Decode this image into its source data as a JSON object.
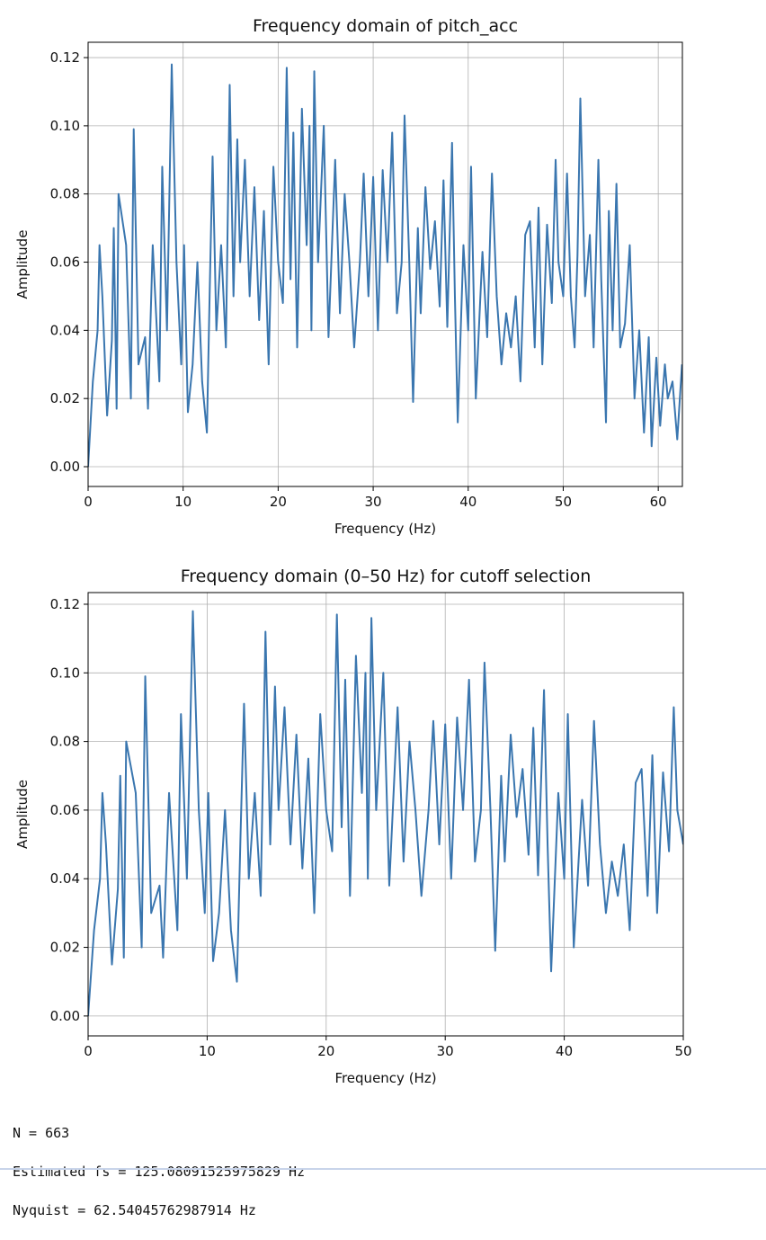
{
  "chart_data": [
    {
      "type": "line",
      "title": "Frequency domain of pitch_acc",
      "xlabel": "Frequency (Hz)",
      "ylabel": "Amplitude",
      "grid": true,
      "xlim": [
        0,
        62.54
      ],
      "ylim": [
        -0.0058,
        0.1245
      ],
      "xticks": [
        0,
        10,
        20,
        30,
        40,
        50,
        60
      ],
      "yticks": [
        {
          "value": 0,
          "label": "0.00"
        },
        {
          "value": 0.02,
          "label": "0.02"
        },
        {
          "value": 0.04,
          "label": "0.04"
        },
        {
          "value": 0.06,
          "label": "0.06"
        },
        {
          "value": 0.08,
          "label": "0.08"
        },
        {
          "value": 0.1,
          "label": "0.10"
        },
        {
          "value": 0.12,
          "label": "0.12"
        }
      ],
      "series": [
        {
          "color": "#3a76af",
          "x": [
            0,
            0.5,
            1,
            1.2,
            1.5,
            2,
            2.5,
            2.7,
            3,
            3.2,
            4,
            4.5,
            4.8,
            5.3,
            6,
            6.3,
            6.8,
            7.5,
            7.8,
            8.3,
            8.8,
            9.3,
            9.8,
            10.1,
            10.5,
            11,
            11.5,
            12,
            12.5,
            12.8,
            13.1,
            13.5,
            14,
            14.5,
            14.9,
            15.3,
            15.7,
            16,
            16.5,
            17,
            17.5,
            18,
            18.5,
            19,
            19.5,
            20,
            20.5,
            20.9,
            21.3,
            21.6,
            22,
            22.5,
            23,
            23.3,
            23.5,
            23.8,
            24.2,
            24.8,
            25.3,
            26,
            26.5,
            27,
            27.5,
            28,
            28.6,
            29,
            29.5,
            30,
            30.5,
            31,
            31.5,
            32,
            32.5,
            33,
            33.3,
            33.8,
            34.2,
            34.7,
            35,
            35.5,
            36,
            36.5,
            37,
            37.4,
            37.8,
            38.3,
            38.6,
            38.9,
            39.5,
            40,
            40.3,
            40.8,
            41.2,
            41.5,
            42,
            42.5,
            43,
            43.5,
            44,
            44.5,
            45,
            45.5,
            46,
            46.5,
            47,
            47.4,
            47.8,
            48.3,
            48.8,
            49.2,
            49.5,
            50,
            50.4,
            50.8,
            51.2,
            51.5,
            51.8,
            52.3,
            52.8,
            53.2,
            53.7,
            54,
            54.5,
            54.8,
            55.2,
            55.6,
            56,
            56.5,
            57,
            57.5,
            58,
            58.5,
            59,
            59.3,
            59.8,
            60.2,
            60.7,
            61,
            61.5,
            62,
            62.5
          ],
          "values": [
            0,
            0.025,
            0.04,
            0.065,
            0.05,
            0.015,
            0.037,
            0.07,
            0.017,
            0.08,
            0.065,
            0.02,
            0.099,
            0.03,
            0.038,
            0.017,
            0.065,
            0.025,
            0.088,
            0.04,
            0.118,
            0.06,
            0.03,
            0.065,
            0.016,
            0.03,
            0.06,
            0.025,
            0.01,
            0.052,
            0.091,
            0.04,
            0.065,
            0.035,
            0.112,
            0.05,
            0.096,
            0.06,
            0.09,
            0.05,
            0.082,
            0.043,
            0.075,
            0.03,
            0.088,
            0.06,
            0.048,
            0.117,
            0.055,
            0.098,
            0.035,
            0.105,
            0.065,
            0.1,
            0.04,
            0.116,
            0.06,
            0.1,
            0.038,
            0.09,
            0.045,
            0.08,
            0.06,
            0.035,
            0.06,
            0.086,
            0.05,
            0.085,
            0.04,
            0.087,
            0.06,
            0.098,
            0.045,
            0.06,
            0.103,
            0.06,
            0.019,
            0.07,
            0.045,
            0.082,
            0.058,
            0.072,
            0.047,
            0.084,
            0.041,
            0.095,
            0.05,
            0.013,
            0.065,
            0.04,
            0.088,
            0.02,
            0.045,
            0.063,
            0.038,
            0.086,
            0.05,
            0.03,
            0.045,
            0.035,
            0.05,
            0.025,
            0.068,
            0.072,
            0.035,
            0.076,
            0.03,
            0.071,
            0.048,
            0.09,
            0.06,
            0.05,
            0.086,
            0.05,
            0.035,
            0.062,
            0.108,
            0.05,
            0.068,
            0.035,
            0.09,
            0.055,
            0.013,
            0.075,
            0.04,
            0.083,
            0.035,
            0.042,
            0.065,
            0.02,
            0.04,
            0.01,
            0.038,
            0.006,
            0.032,
            0.012,
            0.03,
            0.02,
            0.025,
            0.008,
            0.03
          ]
        }
      ]
    },
    {
      "type": "line",
      "title": "Frequency domain (0–50 Hz) for cutoff selection",
      "xlabel": "Frequency (Hz)",
      "ylabel": "Amplitude",
      "grid": true,
      "xlim": [
        0,
        50
      ],
      "ylim": [
        -0.0058,
        0.1234
      ],
      "xticks": [
        0,
        10,
        20,
        30,
        40,
        50
      ],
      "yticks": [
        {
          "value": 0,
          "label": "0.00"
        },
        {
          "value": 0.02,
          "label": "0.02"
        },
        {
          "value": 0.04,
          "label": "0.04"
        },
        {
          "value": 0.06,
          "label": "0.06"
        },
        {
          "value": 0.08,
          "label": "0.08"
        },
        {
          "value": 0.1,
          "label": "0.10"
        },
        {
          "value": 0.12,
          "label": "0.12"
        }
      ],
      "series": [
        {
          "color": "#3a76af",
          "x": [
            0,
            0.5,
            1,
            1.2,
            1.5,
            2,
            2.5,
            2.7,
            3,
            3.2,
            4,
            4.5,
            4.8,
            5.3,
            6,
            6.3,
            6.8,
            7.5,
            7.8,
            8.3,
            8.8,
            9.3,
            9.8,
            10.1,
            10.5,
            11,
            11.5,
            12,
            12.5,
            12.8,
            13.1,
            13.5,
            14,
            14.5,
            14.9,
            15.3,
            15.7,
            16,
            16.5,
            17,
            17.5,
            18,
            18.5,
            19,
            19.5,
            20,
            20.5,
            20.9,
            21.3,
            21.6,
            22,
            22.5,
            23,
            23.3,
            23.5,
            23.8,
            24.2,
            24.8,
            25.3,
            26,
            26.5,
            27,
            27.5,
            28,
            28.6,
            29,
            29.5,
            30,
            30.5,
            31,
            31.5,
            32,
            32.5,
            33,
            33.3,
            33.8,
            34.2,
            34.7,
            35,
            35.5,
            36,
            36.5,
            37,
            37.4,
            37.8,
            38.3,
            38.6,
            38.9,
            39.5,
            40,
            40.3,
            40.8,
            41.2,
            41.5,
            42,
            42.5,
            43,
            43.5,
            44,
            44.5,
            45,
            45.5,
            46,
            46.5,
            47,
            47.4,
            47.8,
            48.3,
            48.8,
            49.2,
            49.5,
            50
          ],
          "values": [
            0,
            0.025,
            0.04,
            0.065,
            0.05,
            0.015,
            0.037,
            0.07,
            0.017,
            0.08,
            0.065,
            0.02,
            0.099,
            0.03,
            0.038,
            0.017,
            0.065,
            0.025,
            0.088,
            0.04,
            0.118,
            0.06,
            0.03,
            0.065,
            0.016,
            0.03,
            0.06,
            0.025,
            0.01,
            0.052,
            0.091,
            0.04,
            0.065,
            0.035,
            0.112,
            0.05,
            0.096,
            0.06,
            0.09,
            0.05,
            0.082,
            0.043,
            0.075,
            0.03,
            0.088,
            0.06,
            0.048,
            0.117,
            0.055,
            0.098,
            0.035,
            0.105,
            0.065,
            0.1,
            0.04,
            0.116,
            0.06,
            0.1,
            0.038,
            0.09,
            0.045,
            0.08,
            0.06,
            0.035,
            0.06,
            0.086,
            0.05,
            0.085,
            0.04,
            0.087,
            0.06,
            0.098,
            0.045,
            0.06,
            0.103,
            0.06,
            0.019,
            0.07,
            0.045,
            0.082,
            0.058,
            0.072,
            0.047,
            0.084,
            0.041,
            0.095,
            0.05,
            0.013,
            0.065,
            0.04,
            0.088,
            0.02,
            0.045,
            0.063,
            0.038,
            0.086,
            0.05,
            0.03,
            0.045,
            0.035,
            0.05,
            0.025,
            0.068,
            0.072,
            0.035,
            0.076,
            0.03,
            0.071,
            0.048,
            0.09,
            0.06,
            0.05
          ]
        }
      ]
    }
  ],
  "output": [
    "N = 663",
    "Estimated fs = 125.08091525975829 Hz",
    "Nyquist = 62.54045762987914 Hz"
  ]
}
